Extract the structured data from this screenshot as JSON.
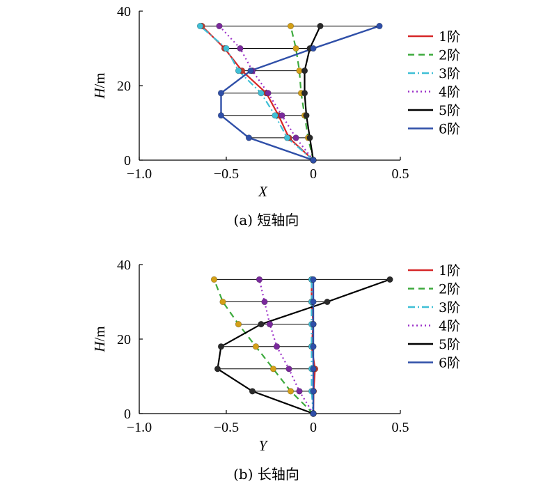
{
  "chart_data": [
    {
      "type": "line",
      "caption": "(a) 短轴向",
      "xlabel": "X",
      "ylabel_italic": "H",
      "ylabel_unit": "/m",
      "xlim": [
        -1.0,
        0.5
      ],
      "ylim": [
        0,
        40
      ],
      "xticks": [
        -1.0,
        -0.5,
        0,
        0.5
      ],
      "xtick_labels": [
        "−1.0",
        "−0.5",
        "0",
        "0.5"
      ],
      "yticks": [
        0,
        20,
        40
      ],
      "ytick_labels": [
        "0",
        "20",
        "40"
      ],
      "legend_position": "right",
      "levels": [
        0,
        6,
        12,
        18,
        24,
        30,
        36
      ],
      "series": [
        {
          "name": "1阶",
          "color": "#d62728",
          "dash": "solid",
          "marker": "#c0392b",
          "values": [
            0,
            -0.14,
            -0.2,
            -0.27,
            -0.41,
            -0.51,
            -0.64
          ]
        },
        {
          "name": "2阶",
          "color": "#3daa3d",
          "dash": "dashed",
          "marker": "#d4a017",
          "values": [
            0,
            -0.03,
            -0.05,
            -0.07,
            -0.08,
            -0.1,
            -0.13
          ]
        },
        {
          "name": "3阶",
          "color": "#3fbfd6",
          "dash": "dashdot",
          "marker": "#3fbfd6",
          "values": [
            0,
            -0.15,
            -0.22,
            -0.3,
            -0.43,
            -0.5,
            -0.65
          ]
        },
        {
          "name": "4阶",
          "color": "#9b30c8",
          "dash": "dotted",
          "marker": "#7a2a9c",
          "values": [
            0,
            -0.1,
            -0.18,
            -0.26,
            -0.35,
            -0.42,
            -0.54
          ]
        },
        {
          "name": "5阶",
          "color": "#000000",
          "dash": "solid",
          "marker": "#2a2a2a",
          "values": [
            0,
            -0.02,
            -0.04,
            -0.05,
            -0.05,
            -0.02,
            0.04
          ]
        },
        {
          "name": "6阶",
          "color": "#2f4fa8",
          "dash": "solid",
          "marker": "#2f4fa8",
          "values": [
            0,
            -0.37,
            -0.53,
            -0.53,
            -0.36,
            0,
            0.38
          ]
        }
      ]
    },
    {
      "type": "line",
      "caption": "(b) 长轴向",
      "xlabel": "Y",
      "ylabel_italic": "H",
      "ylabel_unit": "/m",
      "xlim": [
        -1.0,
        0.5
      ],
      "ylim": [
        0,
        40
      ],
      "xticks": [
        -1.0,
        -0.5,
        0,
        0.5
      ],
      "xtick_labels": [
        "−1.0",
        "−0.5",
        "0",
        "0.5"
      ],
      "yticks": [
        0,
        20,
        40
      ],
      "ytick_labels": [
        "0",
        "20",
        "40"
      ],
      "legend_position": "right",
      "levels": [
        0,
        6,
        12,
        18,
        24,
        30,
        36
      ],
      "series": [
        {
          "name": "1阶",
          "color": "#d62728",
          "dash": "solid",
          "marker": "#c0392b",
          "values": [
            0,
            0.002,
            0.01,
            -0.01,
            0,
            -0.01,
            -0.01
          ]
        },
        {
          "name": "2阶",
          "color": "#3daa3d",
          "dash": "dashed",
          "marker": "#d4a017",
          "values": [
            0,
            -0.13,
            -0.23,
            -0.33,
            -0.43,
            -0.52,
            -0.57
          ]
        },
        {
          "name": "3阶",
          "color": "#3fbfd6",
          "dash": "dashdot",
          "marker": "#3fbfd6",
          "values": [
            0,
            -0.01,
            -0.01,
            -0.01,
            -0.01,
            -0.01,
            -0.01
          ]
        },
        {
          "name": "4阶",
          "color": "#9b30c8",
          "dash": "dotted",
          "marker": "#7a2a9c",
          "values": [
            0,
            -0.08,
            -0.14,
            -0.21,
            -0.25,
            -0.28,
            -0.31
          ]
        },
        {
          "name": "5阶",
          "color": "#000000",
          "dash": "solid",
          "marker": "#2a2a2a",
          "values": [
            0,
            -0.35,
            -0.55,
            -0.53,
            -0.3,
            0.08,
            0.44
          ]
        },
        {
          "name": "6阶",
          "color": "#2f4fa8",
          "dash": "solid",
          "marker": "#2f4fa8",
          "values": [
            0,
            0,
            0,
            0,
            0,
            0,
            0
          ]
        }
      ]
    }
  ]
}
